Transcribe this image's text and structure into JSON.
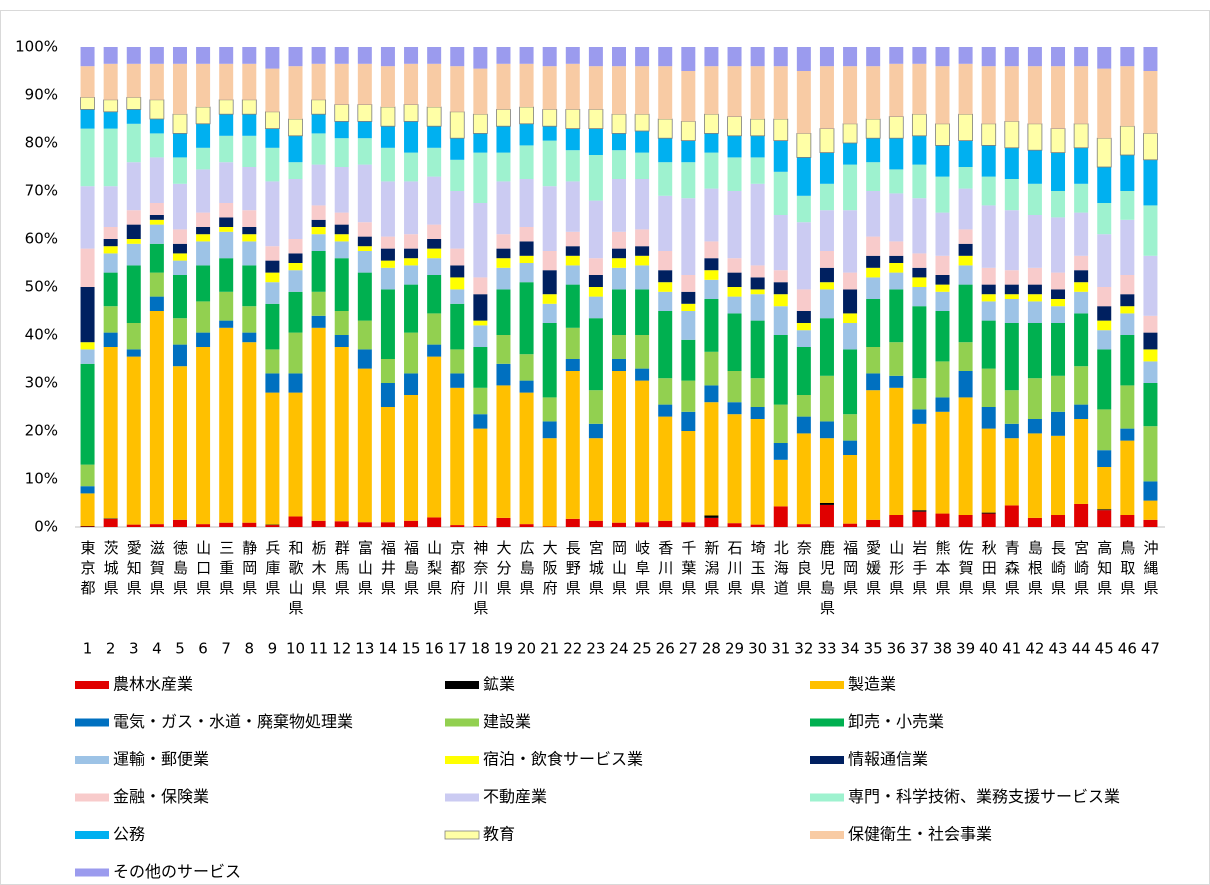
{
  "chart_data": {
    "type": "stacked_bar",
    "categories": [
      "東京都",
      "茨城県",
      "愛知県",
      "滋賀県",
      "徳島県",
      "山口県",
      "三重県",
      "静岡県",
      "兵庫県",
      "和歌山県",
      "栃木県",
      "群馬県",
      "富山県",
      "福井県",
      "福島県",
      "山梨県",
      "京都府",
      "神奈川県",
      "大分県",
      "広島県",
      "大阪府",
      "長野県",
      "宮城県",
      "岡山県",
      "岐阜県",
      "香川県",
      "千葉県",
      "新潟県",
      "石川県",
      "埼玉県",
      "北海道",
      "奈良県",
      "鹿児島県",
      "福岡県",
      "愛媛県",
      "山形県",
      "岩手県",
      "熊本県",
      "佐賀県",
      "秋田県",
      "青森県",
      "島根県",
      "長崎県",
      "宮崎県",
      "高知県",
      "鳥取県",
      "沖縄県"
    ],
    "category_numbers": [
      1,
      2,
      3,
      4,
      5,
      6,
      7,
      8,
      9,
      10,
      11,
      12,
      13,
      14,
      15,
      16,
      17,
      18,
      19,
      20,
      21,
      22,
      23,
      24,
      25,
      26,
      27,
      28,
      29,
      30,
      31,
      32,
      33,
      34,
      35,
      36,
      37,
      38,
      39,
      40,
      41,
      42,
      43,
      44,
      45,
      46,
      47
    ],
    "ylim": [
      0,
      100
    ],
    "yticks": [
      {
        "value": 0,
        "label": "0%"
      },
      {
        "value": 10,
        "label": "10%"
      },
      {
        "value": 20,
        "label": "20%"
      },
      {
        "value": 30,
        "label": "30%"
      },
      {
        "value": 40,
        "label": "40%"
      },
      {
        "value": 50,
        "label": "50%"
      },
      {
        "value": 60,
        "label": "60%"
      },
      {
        "value": 70,
        "label": "70%"
      },
      {
        "value": 80,
        "label": "80%"
      },
      {
        "value": 90,
        "label": "90%"
      },
      {
        "value": 100,
        "label": "100%"
      }
    ],
    "grid": false,
    "legend": "bottom",
    "series": [
      {
        "name": "農林水産業",
        "color": "#e00000",
        "values": [
          0.1,
          1.7,
          0.5,
          0.6,
          1.5,
          0.6,
          0.9,
          0.9,
          0.4,
          2.2,
          1.3,
          1.2,
          1,
          1,
          1.3,
          2,
          0.4,
          0.2,
          1.9,
          0.6,
          0.1,
          1.7,
          1.3,
          0.9,
          1,
          1.3,
          1,
          1.9,
          0.8,
          0.5,
          4.3,
          0.6,
          4.6,
          0.7,
          1.5,
          2.5,
          3.2,
          2.8,
          2.5,
          2.8,
          4.5,
          1.9,
          2.5,
          4.8,
          3.5,
          2.5,
          1.5
        ]
      },
      {
        "name": "鉱業",
        "color": "#000000",
        "values": [
          0.1,
          0.1,
          0,
          0,
          0,
          0,
          0,
          0,
          0.1,
          0,
          0,
          0,
          0,
          0,
          0,
          0,
          0,
          0,
          0,
          0,
          0,
          0,
          0,
          0,
          0,
          0,
          0,
          0.5,
          0,
          0,
          0,
          0,
          0.4,
          0,
          0,
          0,
          0.3,
          0,
          0,
          0.2,
          0,
          0,
          0,
          0,
          0.2,
          0,
          0
        ]
      },
      {
        "name": "製造業",
        "color": "#ffc000",
        "values": [
          6.8,
          35.7,
          35,
          44.4,
          32,
          36.9,
          40.6,
          37.6,
          27.5,
          25.8,
          40.2,
          36.3,
          32,
          24,
          26.2,
          33.5,
          28.6,
          20.3,
          27.6,
          27.4,
          18.4,
          30.8,
          17.2,
          31.6,
          29.5,
          21.7,
          19,
          23.6,
          22.7,
          22,
          9.7,
          18.9,
          13.5,
          14.3,
          27,
          26.5,
          18,
          21.2,
          24.5,
          17.5,
          14,
          17.6,
          16.5,
          17.7,
          8.8,
          15.5,
          4
        ]
      },
      {
        "name": "電気・ガス・水道・廃棄物処理業",
        "color": "#0070c0",
        "values": [
          1.5,
          3,
          1.5,
          3,
          4.5,
          3,
          1.5,
          2,
          4,
          4,
          2.5,
          2.5,
          4,
          5,
          4.5,
          2.5,
          3,
          3,
          4.5,
          2.5,
          3.5,
          2.5,
          3,
          2.5,
          2.5,
          2.5,
          4,
          3.5,
          2.5,
          2.5,
          3.5,
          3.5,
          3.5,
          3,
          3.5,
          2.5,
          3,
          3,
          5.5,
          4.5,
          3,
          3,
          5,
          3,
          3.5,
          2.5,
          4
        ]
      },
      {
        "name": "建設業",
        "color": "#92d050",
        "values": [
          4.5,
          5.5,
          5.5,
          5,
          5.5,
          6.5,
          6,
          5.5,
          5,
          8.5,
          5,
          5,
          6,
          5,
          8.5,
          6.5,
          5,
          5.5,
          6,
          5.5,
          5,
          6.5,
          7,
          5,
          7,
          5.5,
          6.5,
          7,
          6.5,
          6,
          8,
          4.5,
          9.5,
          5.5,
          5.5,
          7,
          6.5,
          7.5,
          6,
          8,
          7,
          8.5,
          7.5,
          8,
          8.5,
          9,
          11.5
        ]
      },
      {
        "name": "卸売・小売業",
        "color": "#00b050",
        "values": [
          21,
          7,
          12,
          6,
          9,
          7.5,
          7,
          8.5,
          9.5,
          8.5,
          8.5,
          11,
          10,
          14.5,
          10,
          8,
          9.5,
          8.5,
          9.5,
          15,
          15.5,
          9,
          15,
          9.5,
          9.5,
          14,
          8.5,
          11,
          12,
          12,
          14.5,
          10,
          12,
          13.5,
          10,
          11,
          15,
          10.5,
          12,
          10,
          14,
          11.5,
          11,
          11,
          12.5,
          10.5,
          9
        ]
      },
      {
        "name": "運輸・郵便業",
        "color": "#9dc3e6",
        "values": [
          3,
          4,
          4.5,
          4,
          3,
          5,
          5.5,
          5,
          4.5,
          4.5,
          3.5,
          3.5,
          4.5,
          4.5,
          4,
          3.5,
          3,
          4.5,
          4.5,
          4,
          4,
          4,
          4.5,
          4.5,
          5,
          4,
          6,
          4,
          3.5,
          5.5,
          6,
          3.5,
          6,
          5.5,
          4.5,
          3.5,
          4,
          4,
          4,
          4,
          5,
          4.5,
          3.5,
          4.5,
          4,
          4.5,
          4.5
        ]
      },
      {
        "name": "宿泊・飲食サービス業",
        "color": "#ffff00",
        "values": [
          1.5,
          1.5,
          1,
          1,
          1.5,
          1.5,
          1,
          1.5,
          2,
          1.5,
          1.5,
          1.5,
          1,
          1.5,
          1.5,
          2,
          2.5,
          1,
          2,
          1.5,
          2,
          2,
          2,
          2,
          2,
          2,
          1.5,
          2,
          2,
          1,
          2.5,
          1.5,
          1.5,
          2,
          2,
          2,
          2,
          1.5,
          2,
          1.5,
          1,
          1.5,
          1.5,
          2,
          2,
          1.5,
          2.5
        ]
      },
      {
        "name": "情報通信業",
        "color": "#002060",
        "values": [
          11.5,
          1.5,
          3,
          1,
          2,
          1.5,
          2,
          1.5,
          2.5,
          2,
          1.5,
          2,
          2,
          2.5,
          2,
          2,
          2.5,
          5.5,
          2,
          3,
          5,
          2,
          2.5,
          2,
          2,
          2.5,
          2.5,
          2.5,
          3,
          2.5,
          2.5,
          2.5,
          3,
          5,
          2.5,
          1.5,
          2,
          2,
          2.5,
          2,
          2,
          2,
          2,
          2.5,
          3,
          2.5,
          3.5
        ]
      },
      {
        "name": "金融・保険業",
        "color": "#f8cbcb",
        "values": [
          8,
          2.5,
          3,
          2.5,
          3,
          3,
          3,
          3.5,
          3,
          3,
          3,
          2.5,
          3,
          2.5,
          3,
          3,
          3.5,
          3.5,
          3,
          3,
          4,
          3,
          3.5,
          3.5,
          3.5,
          4,
          3.5,
          3.5,
          3,
          2.5,
          2.5,
          4.5,
          3.5,
          3.5,
          4,
          3,
          3,
          4,
          3,
          3.5,
          3,
          3.5,
          3.5,
          3,
          4,
          4,
          3.5
        ]
      },
      {
        "name": "不動産業",
        "color": "#cbcbf2",
        "values": [
          13,
          8.5,
          10,
          9.5,
          9.5,
          9,
          8.5,
          9,
          13.5,
          12.5,
          8.5,
          9.5,
          12,
          11.5,
          11,
          10,
          12,
          15.5,
          11,
          10,
          13.5,
          10.5,
          12,
          11,
          10.5,
          11.5,
          16,
          11,
          14,
          17,
          11.5,
          14,
          8.5,
          13,
          9.5,
          10,
          11.5,
          9,
          8.5,
          13,
          12.5,
          11,
          11.5,
          9,
          11,
          11.5,
          12.5
        ]
      },
      {
        "name": "専門・科学技術、業務支援サービス業",
        "color": "#9ef2cf",
        "values": [
          12,
          12,
          8,
          5,
          5.5,
          4.5,
          5.5,
          6.5,
          7,
          3.5,
          6.5,
          6,
          5.5,
          7,
          6,
          6,
          6.5,
          10.5,
          6,
          7,
          9.5,
          6.5,
          9.5,
          6,
          5.5,
          7,
          7.5,
          7.5,
          7,
          5.5,
          9,
          5.5,
          5.5,
          9.5,
          6,
          5,
          7,
          7.5,
          4.5,
          6,
          6.5,
          6.5,
          5.5,
          6,
          6.5,
          6,
          10.5
        ]
      },
      {
        "name": "公務",
        "color": "#00b0f0",
        "values": [
          4,
          3.5,
          3,
          3,
          5,
          5,
          4.5,
          4.5,
          4,
          5.5,
          4,
          3.5,
          3.5,
          4.5,
          6.5,
          4.5,
          4.5,
          4,
          5.5,
          4.5,
          3,
          4.5,
          5.5,
          3.5,
          4.5,
          5,
          4.5,
          4,
          4.5,
          4.5,
          6.5,
          8,
          6.5,
          4.5,
          5,
          6.5,
          6,
          6.5,
          5.5,
          6.5,
          6.5,
          7,
          8,
          7.5,
          7.5,
          7.5,
          9.5
        ]
      },
      {
        "name": "教育",
        "color": "#ffffa6",
        "values": [
          2.5,
          2.5,
          2.5,
          4,
          4,
          3.5,
          3,
          3,
          3.5,
          3.5,
          3,
          3.5,
          3.5,
          4,
          3.5,
          4,
          5.5,
          4,
          3.5,
          3.5,
          3.5,
          4,
          4,
          4,
          3.5,
          4,
          4,
          4,
          4,
          3.5,
          4.5,
          5,
          5,
          4,
          4,
          4.5,
          4.5,
          4.5,
          5.5,
          4.5,
          5.5,
          5.5,
          5,
          5,
          6,
          6,
          5.5
        ]
      },
      {
        "name": "保健衛生・社会事業",
        "color": "#f8cba4",
        "values": [
          6.5,
          7.5,
          7,
          7.5,
          10.5,
          9,
          7.5,
          7.5,
          9,
          11,
          7.5,
          8.5,
          8.5,
          8.5,
          8.5,
          9,
          9.5,
          9.5,
          9.5,
          9,
          9,
          9.5,
          9,
          10,
          10,
          11,
          10.5,
          10,
          10.5,
          11,
          11,
          13,
          13,
          12,
          11,
          11,
          10.5,
          12,
          10.5,
          12,
          11.5,
          12,
          13,
          12,
          14.5,
          12.5,
          13
        ]
      },
      {
        "name": "その他のサービス",
        "color": "#9b9bee",
        "values": [
          4,
          3.5,
          3.5,
          3.5,
          3.5,
          3.5,
          3.5,
          3.5,
          4.5,
          4,
          3.5,
          3.5,
          3.5,
          4,
          3.5,
          3.5,
          4,
          4.5,
          3.5,
          3.5,
          4,
          3.5,
          4,
          4,
          4,
          4,
          5,
          4,
          4,
          4,
          4,
          5,
          4,
          4,
          4,
          3.5,
          3.5,
          4,
          3.5,
          4,
          4,
          4,
          4,
          4,
          4.5,
          4,
          5
        ]
      }
    ]
  }
}
